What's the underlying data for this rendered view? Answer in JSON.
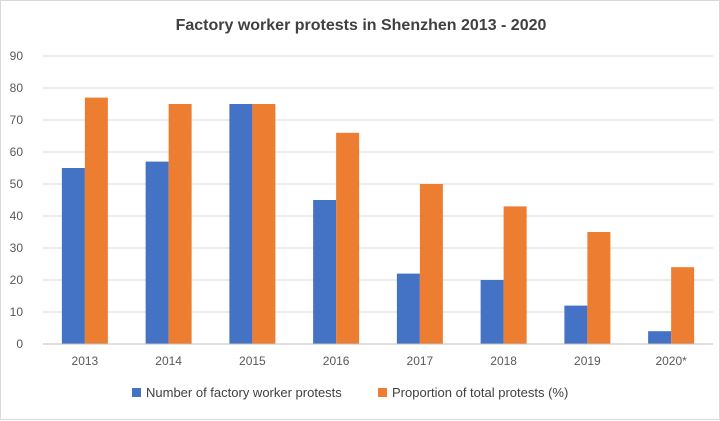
{
  "chart_data": {
    "type": "bar",
    "title": "Factory worker protests in Shenzhen 2013 - 2020",
    "xlabel": "",
    "ylabel": "",
    "categories": [
      "2013",
      "2014",
      "2015",
      "2016",
      "2017",
      "2018",
      "2019",
      "2020*"
    ],
    "series": [
      {
        "name": "Number of factory worker protests",
        "color": "#4472c4",
        "values": [
          55,
          57,
          75,
          45,
          22,
          20,
          12,
          4
        ]
      },
      {
        "name": "Proportion of total protests (%)",
        "color": "#ed7d31",
        "values": [
          77,
          75,
          75,
          66,
          50,
          43,
          35,
          24
        ]
      }
    ],
    "ylim": [
      0,
      90
    ],
    "yticks": [
      "0",
      "10",
      "20",
      "30",
      "40",
      "50",
      "60",
      "70",
      "80",
      "90"
    ],
    "grid": true,
    "legend_position": "bottom"
  }
}
